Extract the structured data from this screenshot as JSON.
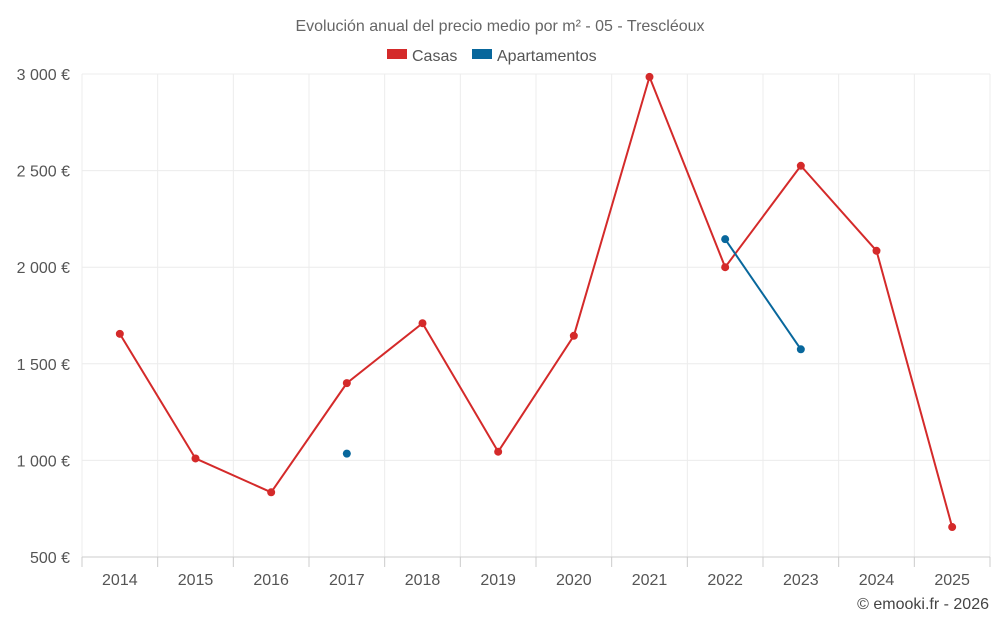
{
  "chart_data": {
    "type": "line",
    "title": "Evolución anual del precio medio por m² - 05 - Trescléoux",
    "categories": [
      "2014",
      "2015",
      "2016",
      "2017",
      "2018",
      "2019",
      "2020",
      "2021",
      "2022",
      "2023",
      "2024",
      "2025"
    ],
    "series": [
      {
        "name": "Casas",
        "color": "#d42a2a",
        "values": [
          1655,
          1010,
          835,
          1400,
          1710,
          1045,
          1645,
          2985,
          2000,
          2525,
          2085,
          655
        ]
      },
      {
        "name": "Apartamentos",
        "color": "#08679c",
        "values": [
          null,
          null,
          null,
          1035,
          null,
          null,
          null,
          null,
          2145,
          1575,
          null,
          null
        ]
      }
    ],
    "ylim": [
      500,
      3000
    ],
    "yticks": [
      500,
      1000,
      1500,
      2000,
      2500,
      3000
    ],
    "ytick_labels": [
      "500 €",
      "1 000 €",
      "1 500 €",
      "2 000 €",
      "2 500 €",
      "3 000 €"
    ],
    "grid": true,
    "legend_position": "top-center",
    "credit": "© emooki.fr - 2026"
  }
}
